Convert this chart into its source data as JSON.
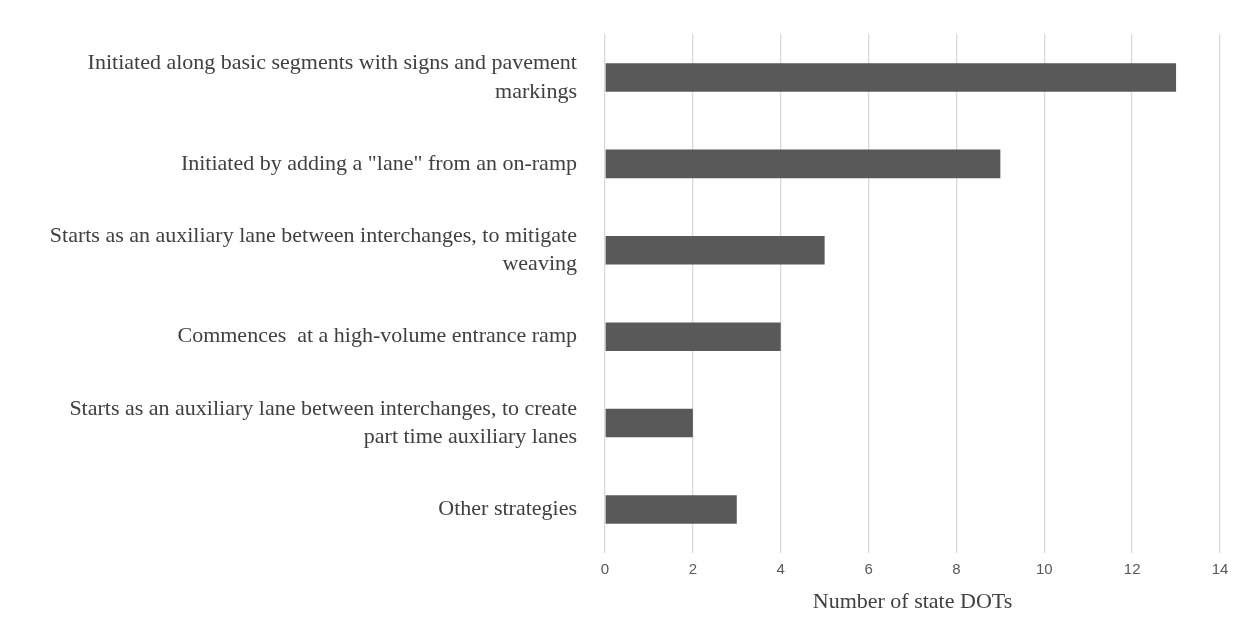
{
  "chart_data": {
    "type": "bar",
    "orientation": "horizontal",
    "categories": [
      "Initiated along basic segments with signs and pavement markings",
      "Initiated by adding a \"lane\" from an on-ramp",
      "Starts as an auxiliary lane between interchanges, to mitigate weaving",
      "Commences  at a high-volume entrance ramp",
      "Starts as an auxiliary lane between interchanges, to create part time auxiliary lanes",
      "Other strategies"
    ],
    "values": [
      13,
      9,
      5,
      4,
      2,
      3
    ],
    "color": "#595959",
    "xlabel": "Number of state DOTs",
    "xlim": [
      0,
      14
    ],
    "xticks": [
      0,
      2,
      4,
      6,
      8,
      10,
      12,
      14
    ],
    "grid": "x",
    "legend": false
  }
}
